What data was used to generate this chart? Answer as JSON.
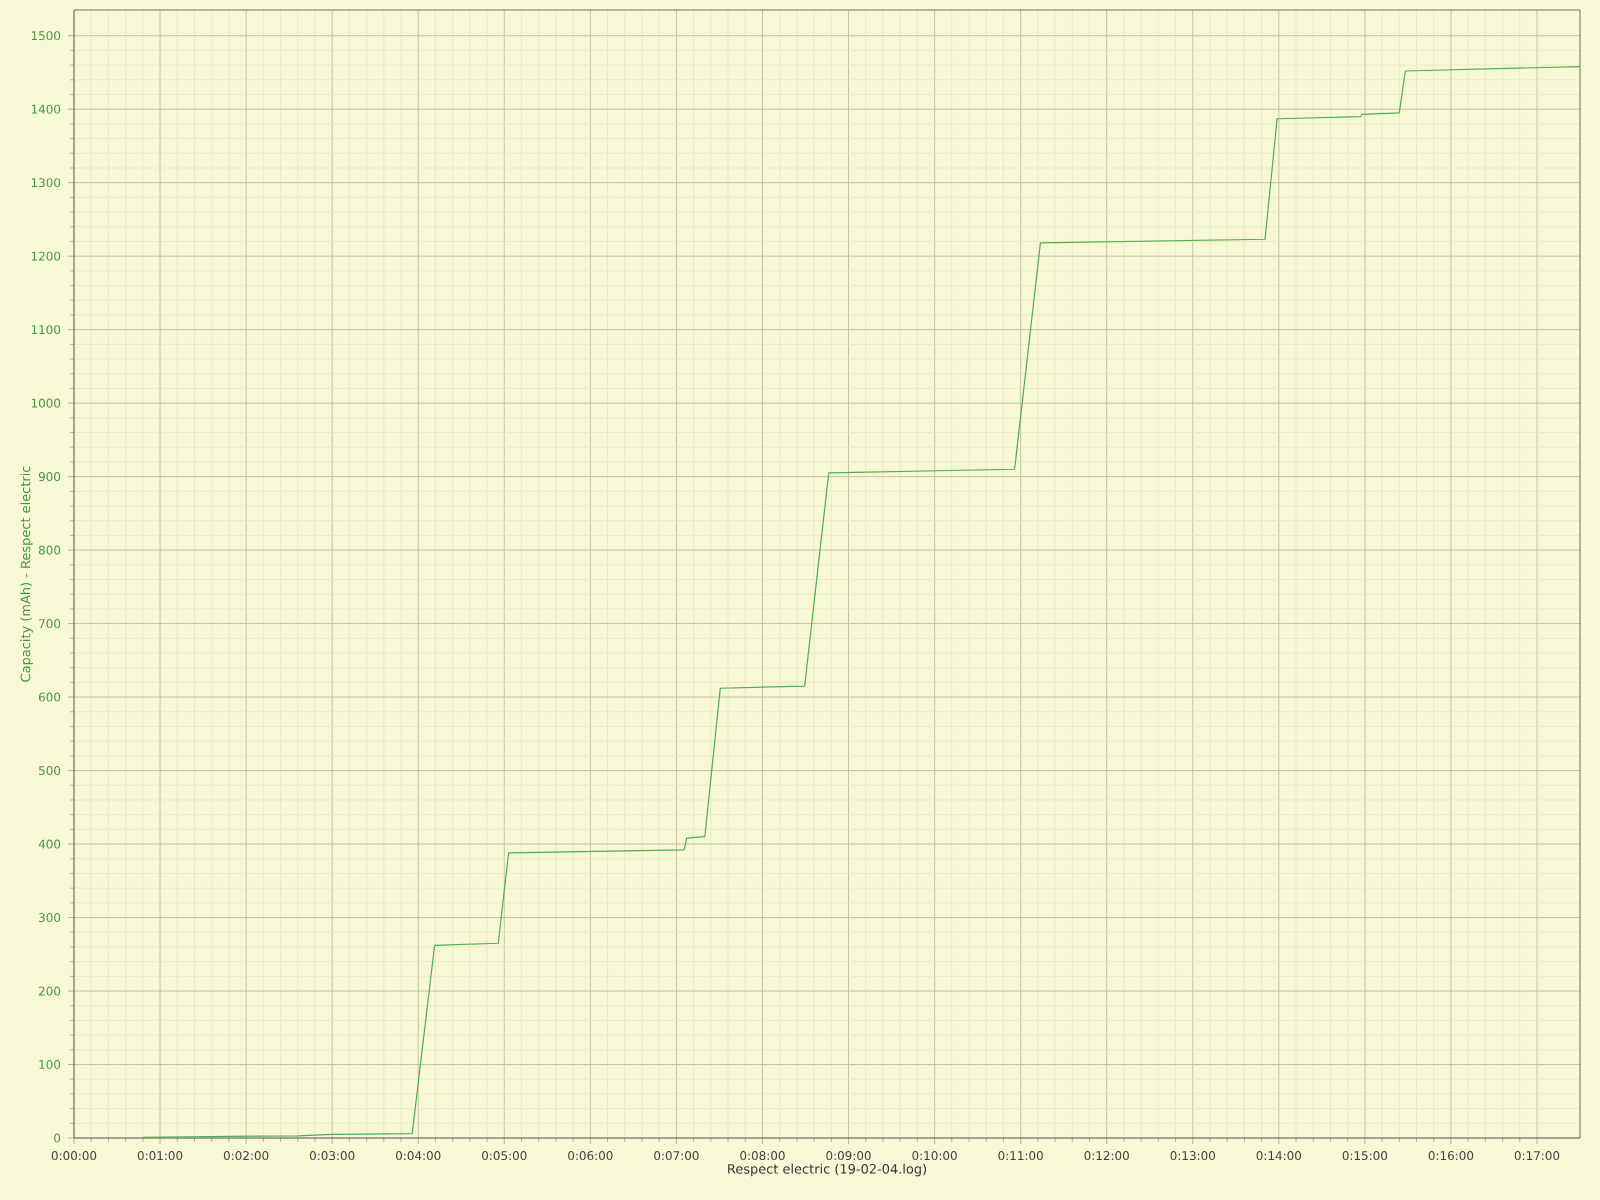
{
  "chart_data": {
    "type": "line",
    "xlabel": "Respect electric (19-02-04.log)",
    "ylabel": "Capacity (mAh) - Respect electric",
    "x": [
      0.8,
      2.6,
      3.0,
      3.93,
      4.19,
      4.93,
      5.05,
      7.09,
      7.12,
      7.33,
      7.51,
      8.49,
      8.77,
      10.93,
      11.23,
      13.84,
      13.98,
      14.95,
      14.97,
      15.4,
      15.47,
      17.5
    ],
    "values": [
      1,
      3,
      5,
      6,
      262,
      265,
      388,
      392,
      408,
      410,
      612,
      615,
      905,
      910,
      1218,
      1223,
      1387,
      1390,
      1393,
      1395,
      1452,
      1458
    ],
    "color": "#4caf50",
    "xlim": [
      0,
      17.5
    ],
    "ylim": [
      0,
      1535
    ],
    "xticks": [
      {
        "value": 0,
        "label": "0:00:00"
      },
      {
        "value": 1,
        "label": "0:01:00"
      },
      {
        "value": 2,
        "label": "0:02:00"
      },
      {
        "value": 3,
        "label": "0:03:00"
      },
      {
        "value": 4,
        "label": "0:04:00"
      },
      {
        "value": 5,
        "label": "0:05:00"
      },
      {
        "value": 6,
        "label": "0:06:00"
      },
      {
        "value": 7,
        "label": "0:07:00"
      },
      {
        "value": 8,
        "label": "0:08:00"
      },
      {
        "value": 9,
        "label": "0:09:00"
      },
      {
        "value": 10,
        "label": "0:10:00"
      },
      {
        "value": 11,
        "label": "0:11:00"
      },
      {
        "value": 12,
        "label": "0:12:00"
      },
      {
        "value": 13,
        "label": "0:13:00"
      },
      {
        "value": 14,
        "label": "0:14:00"
      },
      {
        "value": 15,
        "label": "0:15:00"
      },
      {
        "value": 16,
        "label": "0:16:00"
      },
      {
        "value": 17,
        "label": "0:17:00"
      }
    ],
    "yticks": [
      0,
      100,
      200,
      300,
      400,
      500,
      600,
      700,
      800,
      900,
      1000,
      1100,
      1200,
      1300,
      1400,
      1500
    ],
    "grid": true
  }
}
